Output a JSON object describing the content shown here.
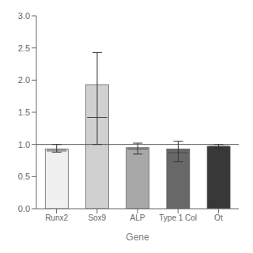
{
  "chart_data": {
    "type": "bar",
    "xlabel": "Gene",
    "categories": [
      "Runx2",
      "Sox9",
      "ALP",
      "Type 1 Col",
      "Ot"
    ],
    "values": [
      0.93,
      1.93,
      0.95,
      0.93,
      0.97
    ],
    "errors_lower": [
      0.05,
      0.93,
      0.1,
      0.2,
      0.03
    ],
    "errors_upper": [
      0.07,
      0.5,
      0.07,
      0.12,
      0.03
    ],
    "medians": [
      0.91,
      1.42,
      0.93,
      0.87,
      0.97
    ],
    "inner_lines": [
      [
        0.89,
        0.93
      ],
      null,
      null,
      null,
      null
    ],
    "colors": [
      "#f0f0f0",
      "#d0d0d0",
      "#a8a8a8",
      "#686868",
      "#383838"
    ],
    "reference_line": 1.0,
    "ylim": [
      0.0,
      3.0
    ],
    "yticks": [
      {
        "value": 0.0,
        "label": "0.0"
      },
      {
        "value": 0.5,
        "label": "0.5"
      },
      {
        "value": 1.0,
        "label": "1.0"
      },
      {
        "value": 1.5,
        "label": "1.5"
      },
      {
        "value": 2.0,
        "label": "2.0"
      },
      {
        "value": 2.5,
        "label": "2.5"
      },
      {
        "value": 3.0,
        "label": "3.0"
      }
    ]
  }
}
